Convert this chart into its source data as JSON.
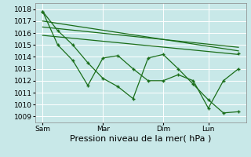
{
  "background_color": "#c8e8e8",
  "grid_color": "#ffffff",
  "line_color": "#1a6e1a",
  "ylabel_ticks": [
    1009,
    1010,
    1011,
    1012,
    1013,
    1014,
    1015,
    1016,
    1017,
    1018
  ],
  "ylim": [
    1008.5,
    1018.5
  ],
  "xlabel": "Pression niveau de la mer( hPa )",
  "xlabel_fontsize": 8,
  "tick_fontsize": 6.5,
  "xtick_labels": [
    "Sam",
    "Mar",
    "Dim",
    "Lun"
  ],
  "xtick_positions": [
    0,
    4,
    8,
    11
  ],
  "xlim": [
    -0.5,
    13.5
  ],
  "series_main_x": [
    0,
    1,
    2,
    3,
    4,
    5,
    6,
    7,
    8,
    9,
    10,
    11,
    12,
    13
  ],
  "series_main_y": [
    1017.8,
    1016.2,
    1015.0,
    1013.5,
    1012.2,
    1011.5,
    1010.5,
    1013.9,
    1014.2,
    1013.0,
    1011.7,
    1010.4,
    1009.3,
    1009.4
  ],
  "series_zigzag_x": [
    0,
    1,
    2,
    3,
    4,
    5,
    6,
    7,
    8,
    9,
    10,
    11,
    12,
    13
  ],
  "series_zigzag_y": [
    1017.8,
    1015.0,
    1013.7,
    1011.6,
    1013.9,
    1014.1,
    1013.0,
    1012.0,
    1012.0,
    1012.5,
    1012.0,
    1009.7,
    1012.0,
    1013.0
  ],
  "series_trend1_x": [
    0,
    13
  ],
  "series_trend1_y": [
    1017.0,
    1014.5
  ],
  "series_trend2_x": [
    0,
    13
  ],
  "series_trend2_y": [
    1016.5,
    1014.8
  ],
  "series_trend3_x": [
    0,
    13
  ],
  "series_trend3_y": [
    1015.8,
    1014.2
  ],
  "end_point_x": [
    13
  ],
  "end_point_y": [
    1014.3
  ]
}
